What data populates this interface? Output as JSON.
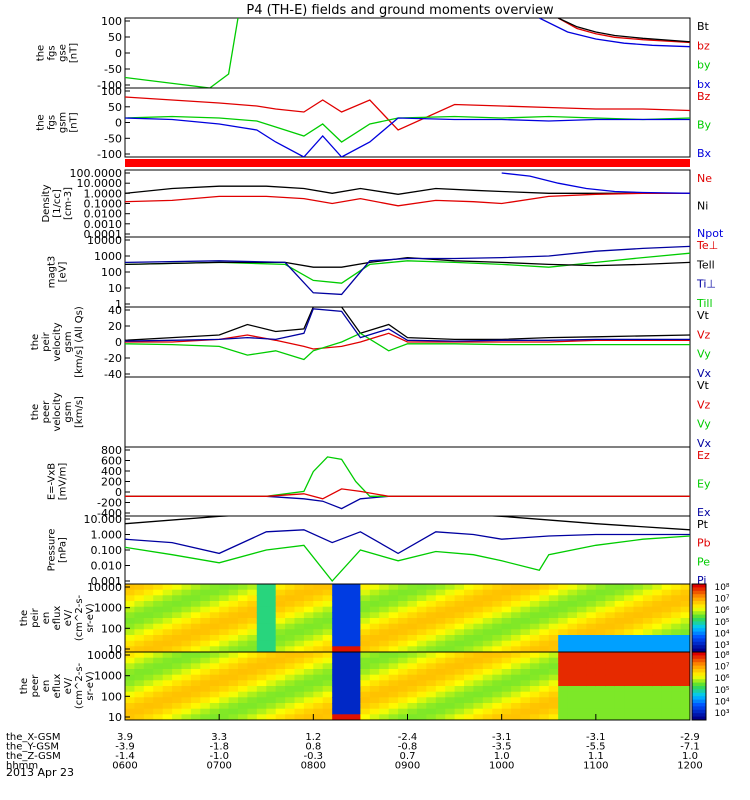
{
  "title": "P4 (TH-E) fields and ground moments overview",
  "date_label": "2013 Apr 23",
  "colors": {
    "black": "#000000",
    "red": "#e00000",
    "green": "#00cc00",
    "blue": "#0000dd",
    "navy": "#0000a0"
  },
  "chart_data": [
    {
      "type": "line",
      "panel": "fgs_gse",
      "ylabel": [
        "the",
        "fgs",
        "gse",
        "[nT]"
      ],
      "yticks": [
        "100",
        "50",
        "0",
        "-50",
        "-100"
      ],
      "ylim": [
        -100,
        100
      ],
      "legend": [
        {
          "label": "Bt",
          "color": "#000000"
        },
        {
          "label": "bz",
          "color": "#e00000"
        },
        {
          "label": "by",
          "color": "#00cc00"
        },
        {
          "label": "bx",
          "color": "#0000dd"
        }
      ],
      "series": [
        {
          "name": "bz",
          "color": "#e00000",
          "x": [
            10.6,
            10.8,
            11.0,
            11.2,
            11.5,
            11.8,
            12.0
          ],
          "values": [
            100,
            70,
            55,
            45,
            38,
            33,
            30
          ]
        },
        {
          "name": "Bt",
          "color": "#000000",
          "x": [
            10.6,
            10.8,
            11.0,
            11.2,
            11.5,
            11.8,
            12.0
          ],
          "values": [
            100,
            75,
            60,
            50,
            42,
            36,
            32
          ]
        },
        {
          "name": "by",
          "color": "#00cc00",
          "x": [
            6.0,
            6.3,
            6.6,
            6.9,
            7.1,
            7.2
          ],
          "values": [
            -70,
            -80,
            -90,
            -100,
            -60,
            100
          ]
        },
        {
          "name": "bx",
          "color": "#0000dd",
          "x": [
            10.4,
            10.7,
            11.0,
            11.3,
            11.6,
            12.0
          ],
          "values": [
            100,
            60,
            40,
            28,
            22,
            18
          ]
        }
      ]
    },
    {
      "type": "line",
      "panel": "fgs_gsm",
      "ylabel": [
        "the",
        "fgs",
        "gsm",
        "[nT]"
      ],
      "yticks": [
        "100",
        "50",
        "0",
        "-50",
        "-100"
      ],
      "ylim": [
        -130,
        100
      ],
      "legend": [
        {
          "label": "Bz",
          "color": "#e00000"
        },
        {
          "label": "By",
          "color": "#00cc00"
        },
        {
          "label": "Bx",
          "color": "#0000dd"
        }
      ],
      "series": [
        {
          "name": "Bz",
          "color": "#e00000",
          "x": [
            6.0,
            6.5,
            7.0,
            7.4,
            7.6,
            7.9,
            8.1,
            8.3,
            8.6,
            8.9,
            9.5,
            10.0,
            10.5,
            11.0,
            11.5,
            12.0
          ],
          "values": [
            70,
            60,
            50,
            40,
            30,
            20,
            60,
            20,
            60,
            -40,
            45,
            40,
            35,
            30,
            30,
            25
          ]
        },
        {
          "name": "By",
          "color": "#00cc00",
          "x": [
            6.0,
            6.5,
            7.0,
            7.4,
            7.6,
            7.9,
            8.1,
            8.3,
            8.6,
            8.9,
            9.5,
            10.0,
            10.5,
            11.0,
            11.5,
            12.0
          ],
          "values": [
            0,
            5,
            0,
            -10,
            -30,
            -60,
            -20,
            -80,
            -20,
            0,
            5,
            0,
            5,
            0,
            -5,
            0
          ]
        },
        {
          "name": "Bx",
          "color": "#0000dd",
          "x": [
            6.0,
            6.5,
            7.0,
            7.4,
            7.6,
            7.9,
            8.1,
            8.3,
            8.6,
            8.9,
            9.5,
            10.0,
            10.5,
            11.0,
            11.5,
            12.0
          ],
          "values": [
            0,
            -5,
            -20,
            -40,
            -80,
            -130,
            -60,
            -130,
            -80,
            0,
            -5,
            -5,
            -10,
            -5,
            -5,
            -5
          ]
        }
      ]
    },
    {
      "type": "line",
      "panel": "density",
      "ylabel": [
        "Density",
        "[1/cc]",
        "[cm-3]"
      ],
      "yticks": [
        "100.0000",
        "10.0000",
        "1.0000",
        "0.1000",
        "0.0100",
        "0.0010",
        "0.0001"
      ],
      "log": true,
      "legend": [
        {
          "label": "Ne",
          "color": "#e00000"
        },
        {
          "label": "Ni",
          "color": "#000000"
        },
        {
          "label": "Npot",
          "color": "#0000dd"
        }
      ],
      "series": [
        {
          "name": "Ni",
          "color": "#000000",
          "x": [
            6.0,
            6.5,
            7.0,
            7.5,
            7.9,
            8.2,
            8.5,
            8.9,
            9.3,
            9.7,
            10.0,
            10.5,
            11.0,
            11.5,
            12.0
          ],
          "values": [
            1.0,
            3.0,
            5.0,
            5.0,
            3.0,
            1.0,
            3.0,
            0.8,
            3.0,
            2.0,
            1.5,
            1.0,
            1.0,
            1.0,
            1.0
          ]
        },
        {
          "name": "Ne",
          "color": "#e00000",
          "x": [
            6.0,
            6.5,
            7.0,
            7.5,
            7.9,
            8.2,
            8.5,
            8.9,
            9.3,
            9.7,
            10.0,
            10.5,
            11.0,
            11.5,
            12.0
          ],
          "values": [
            0.15,
            0.2,
            0.5,
            0.5,
            0.3,
            0.1,
            0.3,
            0.06,
            0.2,
            0.15,
            0.1,
            0.5,
            0.8,
            1.0,
            1.0
          ]
        },
        {
          "name": "Npot",
          "color": "#0000dd",
          "x": [
            10.0,
            10.3,
            10.6,
            10.9,
            11.2,
            11.5,
            12.0
          ],
          "values": [
            100,
            50,
            10,
            3,
            1.5,
            1.2,
            1.0
          ]
        }
      ]
    },
    {
      "type": "line",
      "panel": "temperature",
      "ylabel": [
        "magt3",
        "[eV]"
      ],
      "yticks": [
        "10000",
        "1000",
        "100",
        "10",
        "1"
      ],
      "log": true,
      "legend": [
        {
          "label": "Te⊥",
          "color": "#e00000"
        },
        {
          "label": "Tell",
          "color": "#000000"
        },
        {
          "label": "Ti⊥",
          "color": "#0000a0"
        },
        {
          "label": "Till",
          "color": "#00cc00"
        }
      ],
      "series": [
        {
          "name": "Till",
          "color": "#00cc00",
          "x": [
            6.0,
            7.0,
            7.7,
            8.0,
            8.3,
            8.6,
            9.0,
            9.5,
            10.0,
            10.5,
            11.0,
            11.5,
            12.0
          ],
          "values": [
            300,
            400,
            300,
            30,
            20,
            300,
            500,
            400,
            300,
            200,
            400,
            800,
            1500
          ]
        },
        {
          "name": "Tell",
          "color": "#000000",
          "x": [
            6.0,
            7.0,
            7.7,
            8.0,
            8.3,
            8.6,
            9.0,
            9.5,
            10.0,
            10.5,
            11.0,
            11.5,
            12.0
          ],
          "values": [
            300,
            400,
            400,
            200,
            200,
            400,
            800,
            500,
            400,
            300,
            250,
            300,
            400
          ]
        },
        {
          "name": "Ti⊥",
          "color": "#0000a0",
          "x": [
            6.0,
            7.0,
            7.7,
            8.0,
            8.3,
            8.6,
            9.0,
            9.5,
            10.0,
            10.5,
            11.0,
            11.5,
            12.0
          ],
          "values": [
            400,
            500,
            400,
            5,
            4,
            500,
            700,
            700,
            800,
            1000,
            2000,
            3000,
            4000
          ]
        }
      ]
    },
    {
      "type": "line",
      "panel": "velocity_gsm",
      "ylabel": [
        "the",
        "peir",
        "velocity",
        "gsm",
        "[km/s] (All Qs)"
      ],
      "yticks": [
        "40",
        "20",
        "0",
        "-20",
        "-40"
      ],
      "ylim": [
        -40,
        40
      ],
      "legend": [
        {
          "label": "Vt",
          "color": "#000000"
        },
        {
          "label": "Vz",
          "color": "#e00000"
        },
        {
          "label": "Vy",
          "color": "#00cc00"
        },
        {
          "label": "Vx",
          "color": "#0000a0"
        }
      ],
      "series": [
        {
          "name": "Vt",
          "color": "#000000",
          "x": [
            6.0,
            6.5,
            7.0,
            7.3,
            7.6,
            7.9,
            8.0,
            8.3,
            8.5,
            8.8,
            9.0,
            9.5,
            10.0,
            10.5,
            11.0,
            12.0
          ],
          "values": [
            2,
            5,
            8,
            20,
            12,
            15,
            40,
            40,
            10,
            20,
            5,
            3,
            3,
            5,
            6,
            8
          ]
        },
        {
          "name": "Vz",
          "color": "#e00000",
          "x": [
            6.0,
            6.5,
            7.0,
            7.3,
            7.6,
            7.9,
            8.0,
            8.3,
            8.5,
            8.8,
            9.0,
            9.5,
            10.0,
            10.5,
            11.0,
            12.0
          ],
          "values": [
            0,
            0,
            3,
            8,
            2,
            -5,
            -8,
            -5,
            0,
            10,
            0,
            0,
            0,
            0,
            2,
            2
          ]
        },
        {
          "name": "Vy",
          "color": "#00cc00",
          "x": [
            6.0,
            6.5,
            7.0,
            7.3,
            7.6,
            7.9,
            8.0,
            8.3,
            8.5,
            8.8,
            9.0,
            9.5,
            10.0,
            10.5,
            11.0,
            12.0
          ],
          "values": [
            -2,
            -3,
            -5,
            -15,
            -10,
            -20,
            -10,
            0,
            10,
            -10,
            -2,
            -2,
            -3,
            -3,
            -3,
            -3
          ]
        },
        {
          "name": "Vx",
          "color": "#0000a0",
          "x": [
            6.0,
            6.5,
            7.0,
            7.3,
            7.6,
            7.9,
            8.0,
            8.3,
            8.5,
            8.8,
            9.0,
            9.5,
            10.0,
            10.5,
            11.0,
            12.0
          ],
          "values": [
            1,
            2,
            3,
            5,
            3,
            10,
            38,
            35,
            5,
            15,
            2,
            1,
            2,
            2,
            3,
            3
          ]
        }
      ]
    },
    {
      "type": "line",
      "panel": "velocity_peer",
      "ylabel": [
        "the",
        "peer",
        "velocity",
        "gsm",
        "[km/s]"
      ],
      "legend": [
        {
          "label": "Vt",
          "color": "#000000"
        },
        {
          "label": "Vz",
          "color": "#e00000"
        },
        {
          "label": "Vy",
          "color": "#00cc00"
        },
        {
          "label": "Vx",
          "color": "#0000a0"
        }
      ],
      "series": []
    },
    {
      "type": "line",
      "panel": "efield",
      "ylabel": [
        "E=-VxB",
        "[mV/m]"
      ],
      "yticks": [
        "800",
        "600",
        "400",
        "200",
        "0",
        "-200",
        "-400"
      ],
      "ylim": [
        -400,
        1000
      ],
      "legend": [
        {
          "label": "Ez",
          "color": "#e00000"
        },
        {
          "label": "Ey",
          "color": "#00cc00"
        },
        {
          "label": "Ex",
          "color": "#0000a0"
        }
      ],
      "series": [
        {
          "name": "Ex",
          "color": "#0000a0",
          "x": [
            6.0,
            7.5,
            7.9,
            8.1,
            8.3,
            8.5,
            8.8,
            12.0
          ],
          "values": [
            0,
            0,
            -50,
            -100,
            -250,
            -50,
            0,
            0
          ]
        },
        {
          "name": "Ey",
          "color": "#00cc00",
          "x": [
            6.0,
            7.5,
            7.9,
            8.0,
            8.15,
            8.3,
            8.45,
            8.6,
            8.9,
            12.0
          ],
          "values": [
            0,
            0,
            100,
            500,
            800,
            750,
            300,
            0,
            0,
            0
          ]
        },
        {
          "name": "Ez",
          "color": "#e00000",
          "x": [
            6.0,
            7.5,
            7.9,
            8.1,
            8.3,
            8.5,
            8.8,
            12.0
          ],
          "values": [
            0,
            0,
            50,
            -50,
            150,
            100,
            0,
            0
          ]
        }
      ]
    },
    {
      "type": "line",
      "panel": "pressure",
      "ylabel": [
        "Pressure",
        "[nPa]"
      ],
      "yticks": [
        "10.000",
        "1.000",
        "0.100",
        "0.010",
        "0.001"
      ],
      "log": true,
      "legend": [
        {
          "label": "Pt",
          "color": "#000000"
        },
        {
          "label": "Pb",
          "color": "#e00000"
        },
        {
          "label": "Pe",
          "color": "#00cc00"
        },
        {
          "label": "Pi",
          "color": "#0000a0"
        }
      ],
      "series": [
        {
          "name": "Pt",
          "color": "#000000",
          "x": [
            6.0,
            7.0,
            8.0,
            9.0,
            10.0,
            11.0,
            12.0
          ],
          "values": [
            5,
            15,
            30,
            30,
            15,
            5,
            2
          ]
        },
        {
          "name": "Pi",
          "color": "#0000a0",
          "x": [
            6.0,
            6.5,
            7.0,
            7.5,
            7.9,
            8.2,
            8.5,
            8.9,
            9.3,
            9.7,
            10.0,
            10.5,
            11.0,
            11.5,
            12.0
          ],
          "values": [
            0.5,
            0.3,
            0.06,
            1.5,
            2.0,
            0.3,
            1.5,
            0.06,
            1.5,
            1.0,
            0.5,
            0.8,
            1.0,
            1.0,
            1.0
          ]
        },
        {
          "name": "Pe",
          "color": "#00cc00",
          "x": [
            6.0,
            6.5,
            7.0,
            7.5,
            7.9,
            8.2,
            8.5,
            8.9,
            9.3,
            9.7,
            10.0,
            10.4,
            10.5,
            11.0,
            11.5,
            12.0
          ],
          "values": [
            0.15,
            0.05,
            0.015,
            0.1,
            0.2,
            0.001,
            0.1,
            0.02,
            0.08,
            0.05,
            0.02,
            0.005,
            0.05,
            0.2,
            0.5,
            0.8
          ]
        }
      ]
    },
    {
      "type": "heatmap",
      "panel": "peir_eflux",
      "ylabel": [
        "the",
        "peir",
        "en",
        "eflux",
        "eV/",
        "(cm^2-s-",
        "sr-eV)"
      ],
      "yticks": [
        "10000",
        "1000",
        "100",
        "10"
      ],
      "colorbar_ticks": [
        "10⁸",
        "10⁷",
        "10⁶",
        "10⁵",
        "10⁴",
        "10³"
      ]
    },
    {
      "type": "heatmap",
      "panel": "peer_eflux",
      "ylabel": [
        "the",
        "peer",
        "en",
        "eflux",
        "eV/",
        "(cm^2-s-",
        "sr-eV)"
      ],
      "yticks": [
        "10000",
        "1000",
        "100",
        "10"
      ],
      "colorbar_ticks": [
        "10⁸",
        "10⁷",
        "10⁶",
        "10⁵",
        "10⁴",
        "10³"
      ]
    }
  ],
  "xaxis": {
    "rows": [
      {
        "label": "the_X-GSM",
        "values": [
          "3.9",
          "3.3",
          "1.2",
          "-2.4",
          "-3.1",
          "-3.1",
          "-2.9"
        ]
      },
      {
        "label": "the_Y-GSM",
        "values": [
          "-3.9",
          "-1.8",
          "0.8",
          "-0.8",
          "-3.5",
          "-5.5",
          "-7.1"
        ]
      },
      {
        "label": "the_Z-GSM",
        "values": [
          "-1.4",
          "-1.0",
          "-0.3",
          "0.7",
          "1.0",
          "1.1",
          "1.0"
        ]
      },
      {
        "label": "hhmm",
        "values": [
          "0600",
          "0700",
          "0800",
          "0900",
          "1000",
          "1100",
          "1200"
        ]
      }
    ]
  }
}
